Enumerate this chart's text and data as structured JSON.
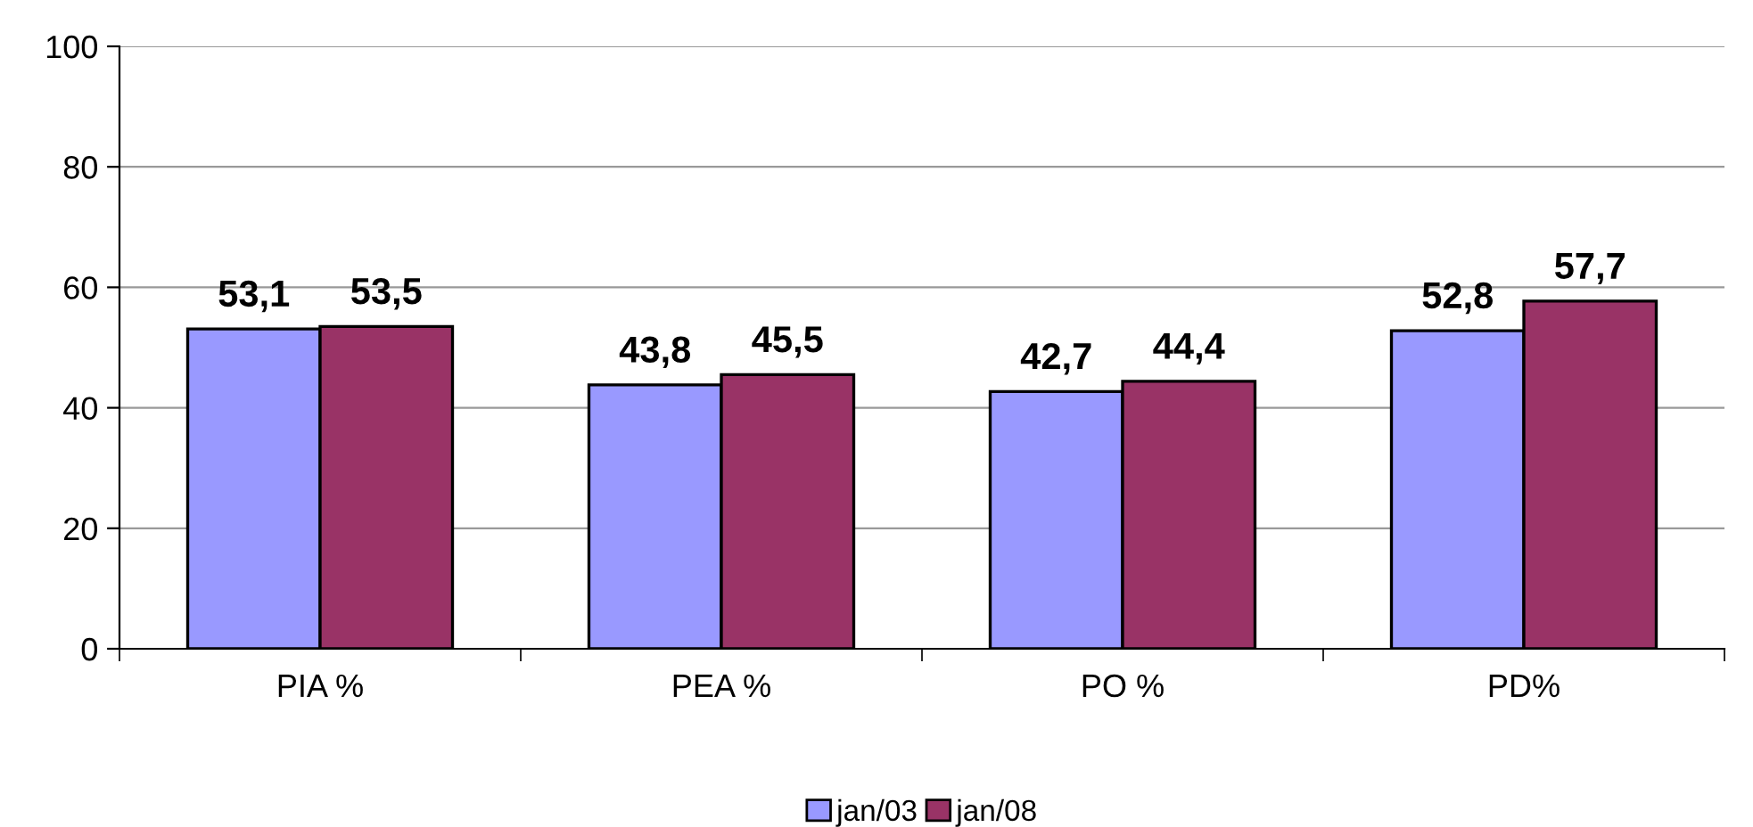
{
  "chart_data": {
    "type": "bar",
    "categories": [
      "PIA %",
      "PEA %",
      "PO %",
      "PD%"
    ],
    "series": [
      {
        "name": "jan/03",
        "color": "#9999ff",
        "values": [
          53.1,
          43.8,
          42.7,
          52.8
        ],
        "value_labels": [
          "53,1",
          "43,8",
          "42,7",
          "52,8"
        ]
      },
      {
        "name": "jan/08",
        "color": "#993366",
        "values": [
          53.5,
          45.5,
          44.4,
          57.7
        ],
        "value_labels": [
          "53,5",
          "45,5",
          "44,4",
          "57,7"
        ]
      }
    ],
    "ylim": [
      0,
      100
    ],
    "yticks": [
      0,
      20,
      40,
      60,
      80,
      100
    ],
    "grid": "y",
    "legend": "bottom"
  }
}
